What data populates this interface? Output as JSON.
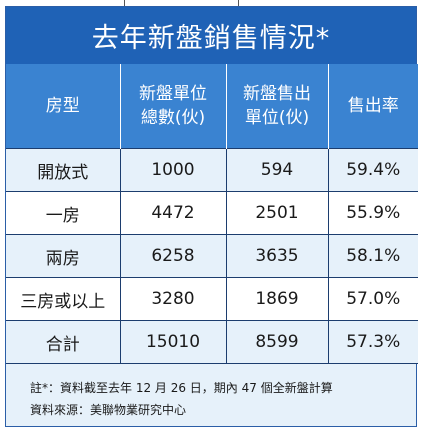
{
  "title": "去年新盤銷售情況*",
  "table": {
    "headers": [
      [
        "房型"
      ],
      [
        "新盤單位",
        "總數(伙)"
      ],
      [
        "新盤售出",
        "單位(伙)"
      ],
      [
        "售出率"
      ]
    ],
    "rows": [
      [
        "開放式",
        "1000",
        "594",
        "59.4%"
      ],
      [
        "一房",
        "4472",
        "2501",
        "55.9%"
      ],
      [
        "兩房",
        "6258",
        "3635",
        "58.1%"
      ],
      [
        "三房或以上",
        "3280",
        "1869",
        "57.0%"
      ],
      [
        "合計",
        "15010",
        "8599",
        "57.3%"
      ]
    ]
  },
  "notes": {
    "footnote": "註*：資料截至去年 12 月 26 日，期內 47 個全新盤計算",
    "source": "資料來源：美聯物業研究中心"
  },
  "colors": {
    "title_bg": "#1f62b6",
    "header_bg": "#3a83d1",
    "row_shade": "#e6f1fa",
    "row_plain": "#ffffff",
    "grid": "#1c3d6e"
  }
}
